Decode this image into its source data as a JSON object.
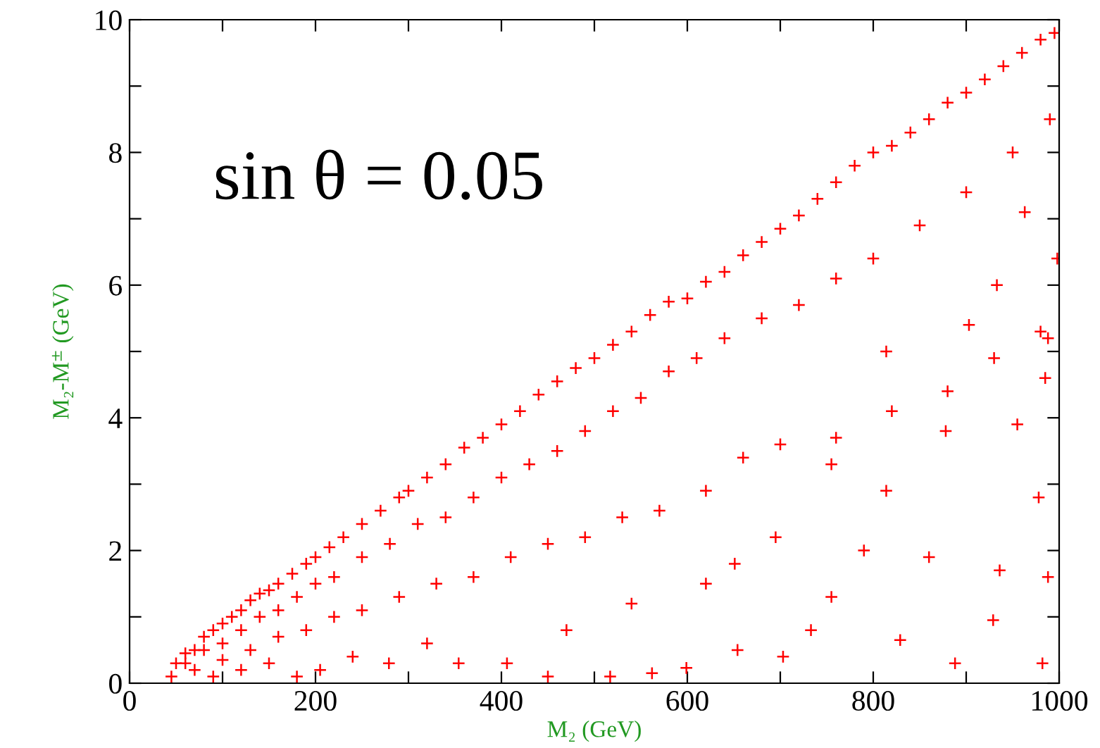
{
  "chart_data": {
    "type": "scatter",
    "xlabel": "M₂ (GeV)",
    "ylabel": "M₂-M$^{±}$ (GeV)",
    "annotations": [
      "sin θ = 0.05"
    ],
    "marker": "cross",
    "grid": false,
    "legend": false,
    "xlim": [
      0,
      1000
    ],
    "ylim": [
      0,
      10
    ],
    "xticks": [
      0,
      {
        "value": 100,
        "label": null
      },
      200,
      {
        "value": 300,
        "label": null
      },
      400,
      {
        "value": 500,
        "label": null
      },
      600,
      {
        "value": 700,
        "label": null
      },
      800,
      {
        "value": 900,
        "label": null
      },
      1000
    ],
    "yticks": [
      0,
      {
        "value": 1,
        "label": null
      },
      2,
      {
        "value": 3,
        "label": null
      },
      4,
      {
        "value": 5,
        "label": null
      },
      6,
      {
        "value": 7,
        "label": null
      },
      8,
      {
        "value": 9,
        "label": null
      },
      10
    ],
    "series": [
      {
        "color": "#ff0000",
        "x": [
          45,
          50,
          60,
          70,
          80,
          90,
          100,
          110,
          120,
          130,
          140,
          150,
          160,
          175,
          190,
          200,
          215,
          230,
          250,
          270,
          290,
          300,
          320,
          340,
          360,
          380,
          400,
          420,
          440,
          460,
          480,
          500,
          520,
          540,
          560,
          580,
          600,
          620,
          640,
          660,
          680,
          700,
          720,
          740,
          760,
          780,
          800,
          820,
          840,
          860,
          880,
          900,
          920,
          940,
          960,
          980,
          995,
          60,
          80,
          100,
          120,
          140,
          160,
          180,
          200,
          220,
          250,
          280,
          310,
          340,
          370,
          400,
          430,
          460,
          490,
          520,
          550,
          580,
          610,
          640,
          680,
          720,
          760,
          800,
          850,
          900,
          950,
          990,
          70,
          100,
          130,
          160,
          190,
          220,
          250,
          290,
          330,
          370,
          410,
          450,
          490,
          530,
          570,
          620,
          660,
          700,
          760,
          820,
          880,
          930,
          980,
          90,
          120,
          150,
          180,
          205,
          240,
          279,
          320,
          354,
          406,
          450,
          470,
          517,
          540,
          562,
          599,
          620,
          654,
          651,
          695,
          703,
          733,
          755,
          755,
          790,
          814,
          829,
          860,
          888,
          903,
          929,
          936,
          955,
          963,
          978,
          982,
          988,
          988,
          985,
          998,
          878,
          814,
          933
        ],
        "values": [
          0.1,
          0.3,
          0.45,
          0.5,
          0.7,
          0.8,
          0.9,
          1.0,
          1.1,
          1.25,
          1.35,
          1.4,
          1.5,
          1.65,
          1.8,
          1.9,
          2.05,
          2.2,
          2.4,
          2.6,
          2.8,
          2.9,
          3.1,
          3.3,
          3.55,
          3.7,
          3.9,
          4.1,
          4.35,
          4.55,
          4.75,
          4.9,
          5.1,
          5.3,
          5.55,
          5.75,
          5.8,
          6.05,
          6.2,
          6.45,
          6.65,
          6.85,
          7.05,
          7.3,
          7.55,
          7.8,
          8.0,
          8.1,
          8.3,
          8.5,
          8.75,
          8.9,
          9.1,
          9.3,
          9.5,
          9.7,
          9.8,
          0.3,
          0.5,
          0.6,
          0.8,
          1.0,
          1.1,
          1.3,
          1.5,
          1.6,
          1.9,
          2.1,
          2.4,
          2.5,
          2.8,
          3.1,
          3.3,
          3.5,
          3.8,
          4.1,
          4.3,
          4.7,
          4.9,
          5.2,
          5.5,
          5.7,
          6.1,
          6.4,
          6.9,
          7.4,
          8.0,
          8.5,
          0.2,
          0.35,
          0.5,
          0.7,
          0.8,
          1.0,
          1.1,
          1.3,
          1.5,
          1.6,
          1.9,
          2.1,
          2.2,
          2.5,
          2.6,
          2.9,
          3.4,
          3.6,
          3.7,
          4.1,
          4.4,
          4.9,
          5.3,
          0.1,
          0.2,
          0.3,
          0.1,
          0.2,
          0.4,
          0.3,
          0.6,
          0.3,
          0.3,
          0.1,
          0.8,
          0.1,
          1.2,
          0.15,
          0.23,
          1.5,
          0.5,
          1.8,
          2.2,
          0.4,
          0.8,
          1.3,
          3.3,
          2.0,
          2.9,
          0.65,
          1.9,
          0.3,
          5.4,
          0.95,
          1.7,
          3.9,
          7.1,
          2.8,
          0.3,
          1.6,
          5.2,
          4.6,
          6.4,
          3.8,
          5.0,
          6.0
        ]
      }
    ]
  }
}
